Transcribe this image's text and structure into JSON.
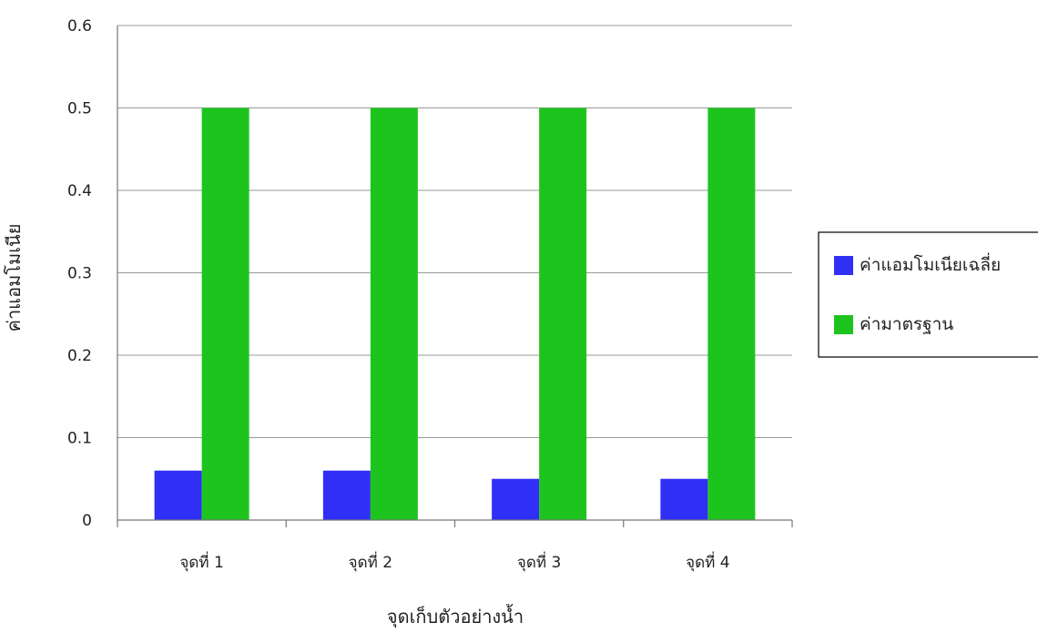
{
  "chart_data": {
    "type": "bar",
    "title": "",
    "xlabel": "จุดเก็บตัวอย่างน้ำ",
    "ylabel": "ค่าแอมโมเนีย",
    "categories": [
      "จุดที่ 1",
      "จุดที่ 2",
      "จุดที่ 3",
      "จุดที่ 4"
    ],
    "series": [
      {
        "name": "ค่าแอมโมเนียเฉลี่ย",
        "values": [
          0.06,
          0.06,
          0.05,
          0.05
        ],
        "color": "#2f2ff5"
      },
      {
        "name": "ค่ามาตรฐาน",
        "values": [
          0.5,
          0.5,
          0.5,
          0.5
        ],
        "color": "#1ec41e"
      }
    ],
    "yticks": [
      "0",
      "0.1",
      "0.2",
      "0.3",
      "0.4",
      "0.5",
      "0.6"
    ],
    "ylim": [
      0,
      0.6
    ],
    "grid": true,
    "legend_position": "right"
  }
}
